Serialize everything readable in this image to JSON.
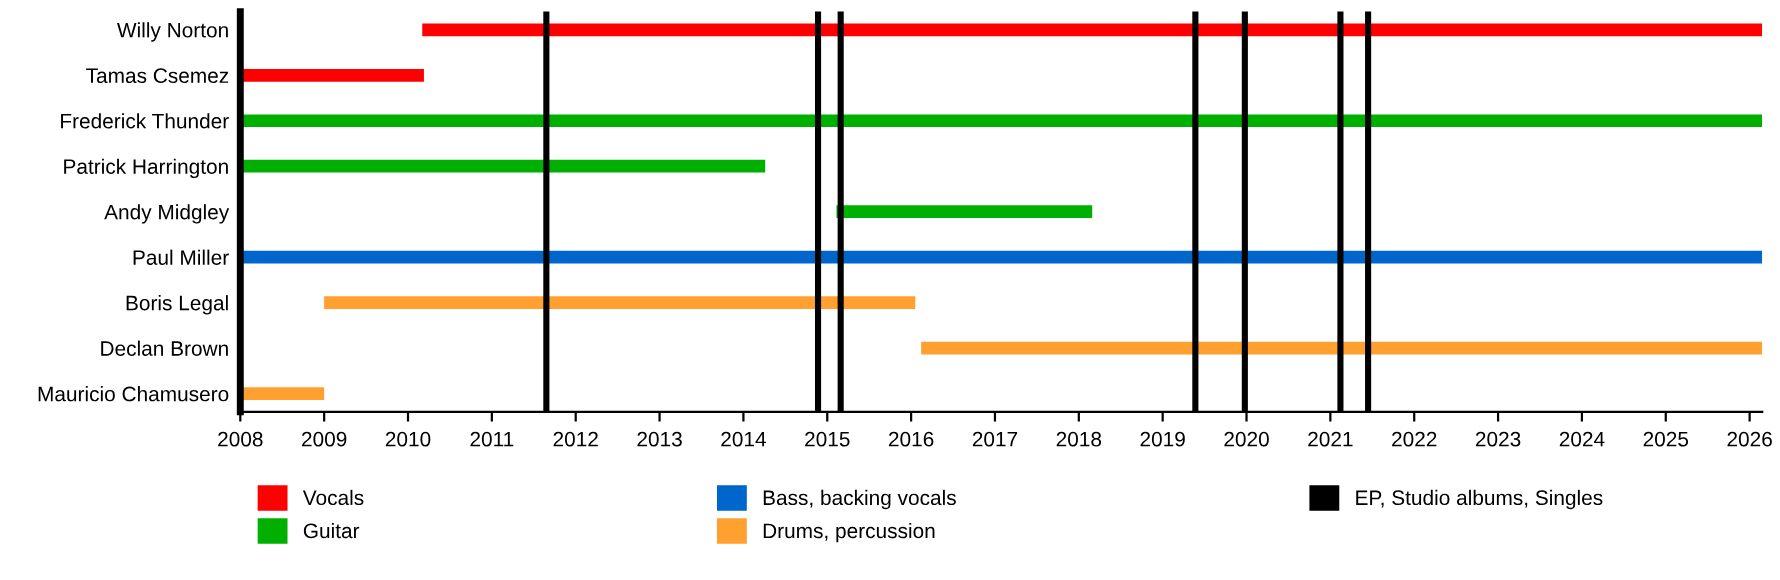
{
  "chart_data": {
    "type": "bar",
    "orientation": "horizontal",
    "categories": [
      "Willy Norton",
      "Tamas Csemez",
      "Frederick Thunder",
      "Patrick Harrington",
      "Andy Midgley",
      "Paul Miller",
      "Boris Legal",
      "Declan Brown",
      "Mauricio Chamusero"
    ],
    "series": [
      {
        "name": "Vocals",
        "color": "#ff0000",
        "base": [
          2010.17,
          2008,
          null,
          null,
          null,
          null,
          null,
          null,
          null
        ],
        "values": [
          15.98,
          2.19,
          null,
          null,
          null,
          null,
          null,
          null,
          null
        ]
      },
      {
        "name": "Guitar",
        "color": "#00b000",
        "base": [
          null,
          null,
          2008,
          2008,
          2015.11,
          null,
          null,
          null,
          null
        ],
        "values": [
          null,
          null,
          18.15,
          6.26,
          3.05,
          null,
          null,
          null,
          null
        ]
      },
      {
        "name": "Bass, backing vocals",
        "color": "#0066cc",
        "base": [
          null,
          null,
          null,
          null,
          null,
          2008,
          null,
          null,
          null
        ],
        "values": [
          null,
          null,
          null,
          null,
          null,
          18.15,
          null,
          null,
          null
        ]
      },
      {
        "name": "Drums, percussion",
        "color": "#ffa030",
        "base": [
          null,
          null,
          null,
          null,
          null,
          null,
          2009.0,
          2016.12,
          2008
        ],
        "values": [
          null,
          null,
          null,
          null,
          null,
          null,
          7.05,
          10.03,
          1.0
        ]
      }
    ],
    "ref_lines": [
      {
        "axis": "x",
        "value": 2011.65,
        "label": "EP, Studio albums, Singles",
        "color": "#000000"
      },
      {
        "axis": "x",
        "value": 2014.89,
        "color": "#000000"
      },
      {
        "axis": "x",
        "value": 2015.16,
        "color": "#000000"
      },
      {
        "axis": "x",
        "value": 2019.39,
        "color": "#000000"
      },
      {
        "axis": "x",
        "value": 2019.98,
        "color": "#000000"
      },
      {
        "axis": "x",
        "value": 2021.12,
        "color": "#000000"
      },
      {
        "axis": "x",
        "value": 2021.45,
        "color": "#000000"
      }
    ],
    "xlim": [
      2008,
      2026.15
    ],
    "xticks": [
      2008,
      2009,
      2010,
      2011,
      2012,
      2013,
      2014,
      2015,
      2016,
      2017,
      2018,
      2019,
      2020,
      2021,
      2022,
      2023,
      2024,
      2025,
      2026
    ],
    "grid": false,
    "legend": "bottom"
  }
}
